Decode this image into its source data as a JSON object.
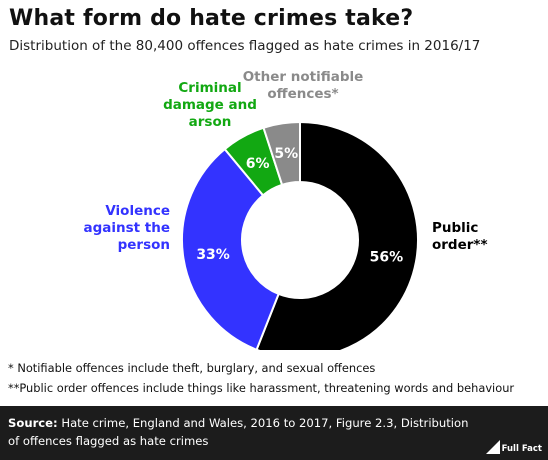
{
  "header": {
    "title": "What form do hate crimes take?",
    "subtitle": "Distribution of the 80,400 offences flagged as hate crimes in 2016/17"
  },
  "chart_data": {
    "type": "pie",
    "title": "What form do hate crimes take?",
    "subtitle": "Distribution of the 80,400 offences flagged as hate crimes in 2016/17",
    "slices": [
      {
        "label": [
          "Public",
          "order**"
        ],
        "value": 56,
        "display": "56%",
        "color": "#000000",
        "text_color": "#000000",
        "value_color": "#ffffff"
      },
      {
        "label": [
          "Violence",
          "against the",
          "person"
        ],
        "value": 33,
        "display": "33%",
        "color": "#3333ff",
        "text_color": "#3333ff",
        "value_color": "#ffffff"
      },
      {
        "label": [
          "Criminal",
          "damage and",
          "arson"
        ],
        "value": 6,
        "display": "6%",
        "color": "#12a812",
        "text_color": "#12a812",
        "value_color": "#ffffff"
      },
      {
        "label": [
          "Other notifiable",
          "offences*"
        ],
        "value": 5,
        "display": "5%",
        "color": "#8a8a8a",
        "text_color": "#8a8a8a",
        "value_color": "#ffffff"
      }
    ]
  },
  "notes": {
    "note1": "* Notifiable offences include theft, burglary, and sexual offences",
    "note2": "**Public order offences include things like harassment, threatening words and behaviour"
  },
  "footer": {
    "source_label": "Source:",
    "source_text": " Hate crime, England and Wales, 2016 to 2017, Figure 2.3, Distribution of offences flagged as hate crimes",
    "logo_text": "Full Fact"
  }
}
